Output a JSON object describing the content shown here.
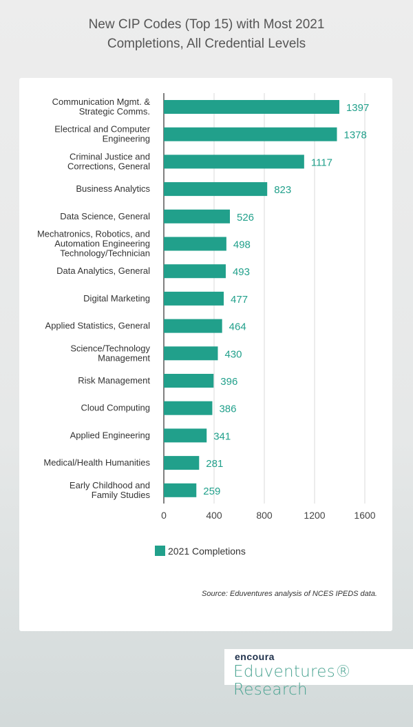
{
  "chart_data": {
    "type": "bar",
    "orientation": "horizontal",
    "title": "New CIP Codes (Top 15) with Most 2021 Completions, All Credential Levels",
    "title_lines": [
      "New CIP Codes (Top 15) with Most 2021",
      "Completions, All Credential Levels"
    ],
    "categories": [
      [
        "Communication Mgmt. &",
        "Strategic Comms."
      ],
      [
        "Electrical and Computer",
        "Engineering"
      ],
      [
        "Criminal Justice and",
        "Corrections, General"
      ],
      [
        "Business Analytics"
      ],
      [
        "Data Science, General"
      ],
      [
        "Mechatronics, Robotics, and",
        "Automation Engineering",
        "Technology/Technician"
      ],
      [
        "Data Analytics, General"
      ],
      [
        "Digital Marketing"
      ],
      [
        "Applied Statistics, General"
      ],
      [
        "Science/Technology",
        "Management"
      ],
      [
        "Risk Management"
      ],
      [
        "Cloud Computing"
      ],
      [
        "Applied Engineering"
      ],
      [
        "Medical/Health Humanities"
      ],
      [
        "Early Childhood and",
        "Family Studies"
      ]
    ],
    "series": [
      {
        "name": "2021 Completions",
        "values": [
          1397,
          1378,
          1117,
          823,
          526,
          498,
          493,
          477,
          464,
          430,
          396,
          386,
          341,
          281,
          259
        ],
        "color": "#21a08b"
      }
    ],
    "xlim": [
      0,
      1600
    ],
    "xticks": [
      0,
      400,
      800,
      1200,
      1600
    ],
    "grid": true,
    "legend": "bottom",
    "label_color": "#21a08b"
  },
  "source": "Source: Eduventures analysis of NCES IPEDS data.",
  "logo": {
    "brand": "encoura",
    "name": "Eduventures® Research"
  }
}
